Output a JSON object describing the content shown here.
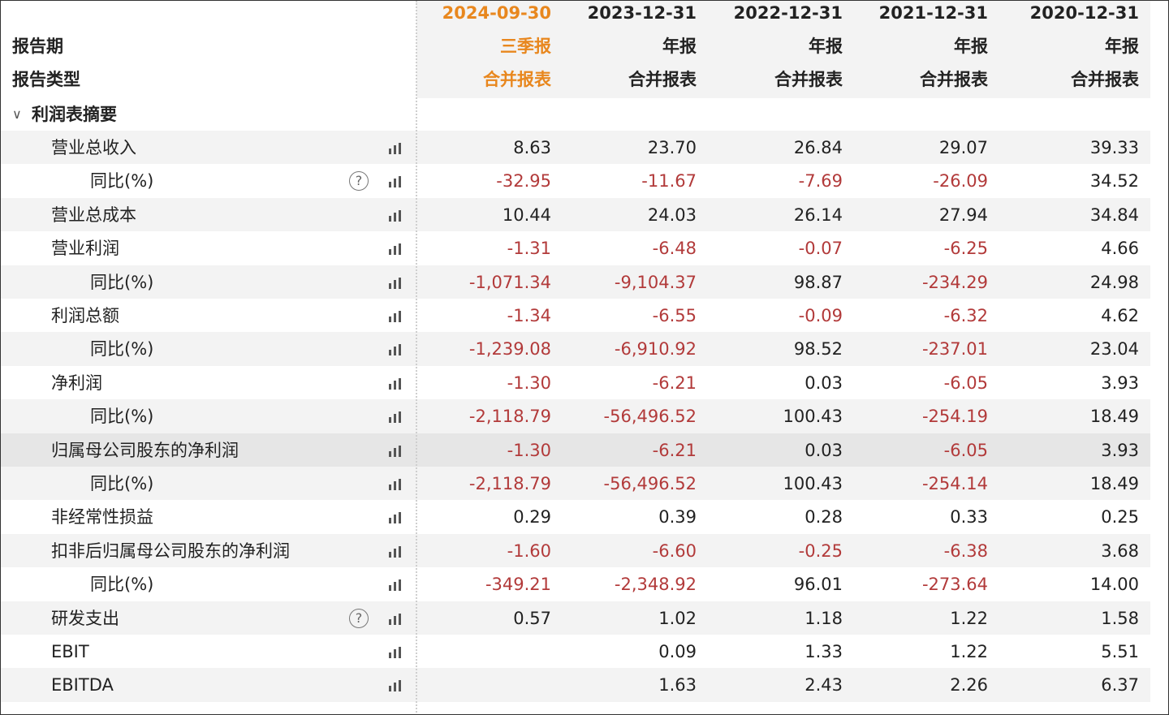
{
  "header": {
    "row_labels": [
      "报告期",
      "报告类型"
    ],
    "columns": [
      {
        "period": "2024-09-30",
        "report": "三季报",
        "type": "合并报表"
      },
      {
        "period": "2023-12-31",
        "report": "年报",
        "type": "合并报表"
      },
      {
        "period": "2022-12-31",
        "report": "年报",
        "type": "合并报表"
      },
      {
        "period": "2021-12-31",
        "report": "年报",
        "type": "合并报表"
      },
      {
        "period": "2020-12-31",
        "report": "年报",
        "type": "合并报表"
      }
    ]
  },
  "section": {
    "title": "利润表摘要",
    "rows": [
      {
        "label": "营业总收入",
        "values": [
          "8.63",
          "23.70",
          "26.84",
          "29.07",
          "39.33"
        ]
      },
      {
        "label": "同比(%)",
        "values": [
          "-32.95",
          "-11.67",
          "-7.69",
          "-26.09",
          "34.52"
        ]
      },
      {
        "label": "营业总成本",
        "values": [
          "10.44",
          "24.03",
          "26.14",
          "27.94",
          "34.84"
        ]
      },
      {
        "label": "营业利润",
        "values": [
          "-1.31",
          "-6.48",
          "-0.07",
          "-6.25",
          "4.66"
        ]
      },
      {
        "label": "同比(%)",
        "values": [
          "-1,071.34",
          "-9,104.37",
          "98.87",
          "-234.29",
          "24.98"
        ]
      },
      {
        "label": "利润总额",
        "values": [
          "-1.34",
          "-6.55",
          "-0.09",
          "-6.32",
          "4.62"
        ]
      },
      {
        "label": "同比(%)",
        "values": [
          "-1,239.08",
          "-6,910.92",
          "98.52",
          "-237.01",
          "23.04"
        ]
      },
      {
        "label": "净利润",
        "values": [
          "-1.30",
          "-6.21",
          "0.03",
          "-6.05",
          "3.93"
        ]
      },
      {
        "label": "同比(%)",
        "values": [
          "-2,118.79",
          "-56,496.52",
          "100.43",
          "-254.19",
          "18.49"
        ]
      },
      {
        "label": "归属母公司股东的净利润",
        "values": [
          "-1.30",
          "-6.21",
          "0.03",
          "-6.05",
          "3.93"
        ]
      },
      {
        "label": "同比(%)",
        "values": [
          "-2,118.79",
          "-56,496.52",
          "100.43",
          "-254.14",
          "18.49"
        ]
      },
      {
        "label": "非经常性损益",
        "values": [
          "0.29",
          "0.39",
          "0.28",
          "0.33",
          "0.25"
        ]
      },
      {
        "label": "扣非后归属母公司股东的净利润",
        "values": [
          "-1.60",
          "-6.60",
          "-0.25",
          "-6.38",
          "3.68"
        ]
      },
      {
        "label": "同比(%)",
        "values": [
          "-349.21",
          "-2,348.92",
          "96.01",
          "-273.64",
          "14.00"
        ]
      },
      {
        "label": "研发支出",
        "values": [
          "0.57",
          "1.02",
          "1.18",
          "1.22",
          "1.58"
        ]
      },
      {
        "label": "EBIT",
        "values": [
          null,
          "0.09",
          "1.33",
          "1.22",
          "5.51"
        ]
      },
      {
        "label": "EBITDA",
        "values": [
          null,
          "1.63",
          "2.43",
          "2.26",
          "6.37"
        ]
      }
    ]
  }
}
